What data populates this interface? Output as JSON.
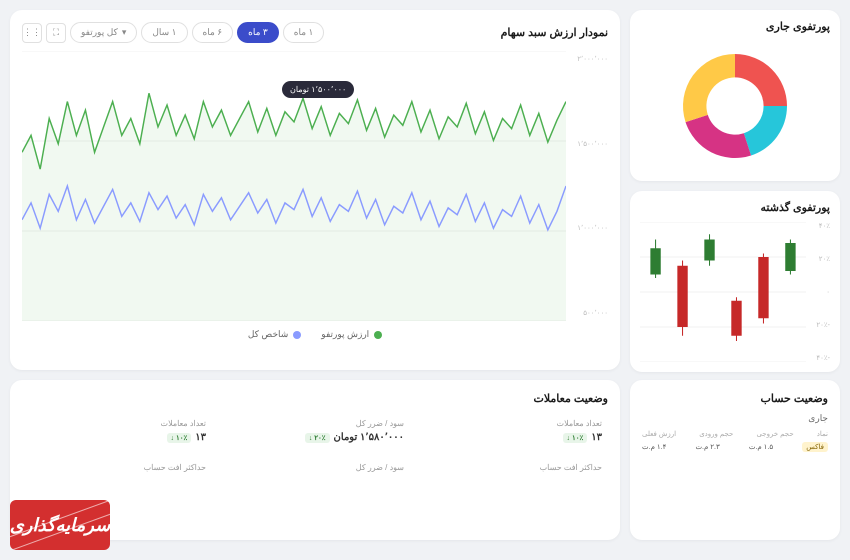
{
  "main_chart": {
    "title": "نمودار ارزش سبد سهام",
    "type": "line",
    "time_tabs": [
      "۱ ماه",
      "۳ ماه",
      "۶ ماه",
      "۱ سال"
    ],
    "active_tab_index": 1,
    "select_label": "کل پورتفو",
    "y_labels": [
      "۲٬۰۰۰٬۰۰۰",
      "۱٬۵۰۰٬۰۰۰",
      "۱٬۰۰۰٬۰۰۰",
      "۵۰۰٬۰۰۰"
    ],
    "ylim": [
      400000,
      2000000
    ],
    "tooltip": "۱٬۵۰۰٬۰۰۰ تومان",
    "legend": [
      {
        "label": "ارزش پورتفو",
        "color": "#4caf50"
      },
      {
        "label": "شاخص کل",
        "color": "#8a9bff"
      }
    ],
    "grid_color": "#f0f0f0",
    "background_color": "#ffffff",
    "series1": {
      "color": "#4caf50",
      "fill": "rgba(76,175,80,0.08)",
      "values": [
        1400,
        1500,
        1300,
        1600,
        1450,
        1700,
        1500,
        1650,
        1400,
        1550,
        1700,
        1500,
        1600,
        1450,
        1750,
        1550,
        1680,
        1500,
        1620,
        1480,
        1700,
        1550,
        1650,
        1500,
        1600,
        1700,
        1520,
        1660,
        1500,
        1640,
        1580,
        1720,
        1540,
        1670,
        1500,
        1630,
        1570,
        1710,
        1530,
        1660,
        1490,
        1620,
        1560,
        1700,
        1520,
        1650,
        1480,
        1610,
        1550,
        1690,
        1510,
        1640,
        1470,
        1600,
        1540,
        1680,
        1500,
        1630,
        1460,
        1590,
        1700
      ]
    },
    "series2": {
      "color": "#8a9bff",
      "values": [
        1000,
        1100,
        950,
        1150,
        1050,
        1200,
        1000,
        1120,
        980,
        1080,
        1180,
        1020,
        1100,
        990,
        1160,
        1060,
        1140,
        1010,
        1090,
        970,
        1150,
        1050,
        1130,
        1000,
        1080,
        1160,
        1040,
        1120,
        980,
        1100,
        1060,
        1180,
        1020,
        1130,
        990,
        1090,
        1050,
        1170,
        1010,
        1120,
        970,
        1080,
        1040,
        1160,
        1000,
        1110,
        960,
        1070,
        1030,
        1150,
        990,
        1100,
        950,
        1060,
        1020,
        1140,
        980,
        1090,
        940,
        1050,
        1200
      ]
    }
  },
  "donut": {
    "title": "پورتفوی جاری",
    "type": "donut",
    "slices": [
      {
        "value": 25,
        "color": "#ef5350"
      },
      {
        "value": 20,
        "color": "#26c6da"
      },
      {
        "value": 25,
        "color": "#d63384"
      },
      {
        "value": 30,
        "color": "#ffc947"
      }
    ],
    "inner_radius_ratio": 0.55
  },
  "candles": {
    "title": "پورتفوی گذشته",
    "type": "candlestick",
    "y_labels": [
      "۴۰٪",
      "۲۰٪",
      "۰",
      "-۲۰٪",
      "-۴۰٪"
    ],
    "ylim": [
      -40,
      40
    ],
    "grid_color": "#f0f0f0",
    "bars": [
      {
        "open": 25,
        "close": 10,
        "high": 30,
        "low": 8,
        "color": "#2e7d32"
      },
      {
        "open": 15,
        "close": -20,
        "high": 18,
        "low": -25,
        "color": "#c62828"
      },
      {
        "open": 30,
        "close": 18,
        "high": 33,
        "low": 15,
        "color": "#2e7d32"
      },
      {
        "open": -5,
        "close": -25,
        "high": -3,
        "low": -28,
        "color": "#c62828"
      },
      {
        "open": 20,
        "close": -15,
        "high": 22,
        "low": -18,
        "color": "#c62828"
      },
      {
        "open": 28,
        "close": 12,
        "high": 30,
        "low": 10,
        "color": "#2e7d32"
      }
    ]
  },
  "trades": {
    "title": "وضعیت معاملات",
    "stats": [
      {
        "label": "تعداد معاملات",
        "value": "۱۳",
        "badge": "۱۰٪ ↓",
        "badge_color": "green"
      },
      {
        "label": "سود / ضرر کل",
        "value": "۱٬۵۸۰٬۰۰۰ تومان",
        "badge": "۲۰٪ ↓",
        "badge_color": "green"
      },
      {
        "label": "تعداد معاملات",
        "value": "۱۳",
        "badge": "۱۰٪ ↓",
        "badge_color": "green"
      },
      {
        "label": "حداکثر افت حساب",
        "value": "",
        "badge": "",
        "badge_color": ""
      },
      {
        "label": "سود / ضرر کل",
        "value": "",
        "badge": "",
        "badge_color": ""
      },
      {
        "label": "حداکثر افت حساب",
        "value": "",
        "badge": "",
        "badge_color": ""
      }
    ]
  },
  "account": {
    "title": "وضعیت حساب",
    "subtitle": "جاری",
    "headers": [
      "نماد",
      "حجم خروجی",
      "حجم ورودی",
      "ارزش فعلی"
    ],
    "row": {
      "sym": "فاکس",
      "out": "۱.۵ م.ت",
      "in": "۲.۳ م.ت",
      "val": "۱.۴ م.ت"
    }
  },
  "logo_text": "سرمایه‌گذاری"
}
